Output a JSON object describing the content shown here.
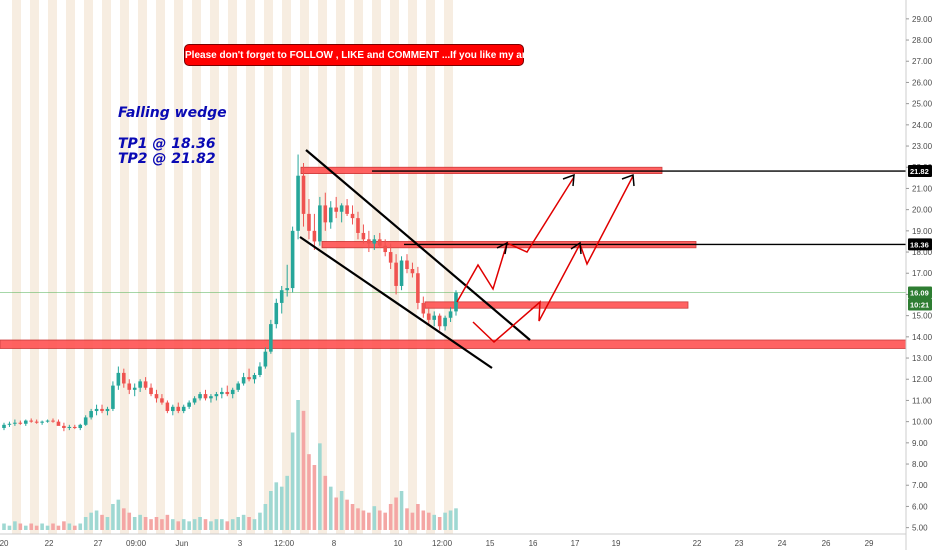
{
  "banner_text": "Please don't forget  to FOLLOW , LIKE and COMMENT ...If you like my analysis:)",
  "annotations": {
    "pattern": "Falling wedge",
    "tp1": "TP1 @ 18.36",
    "tp2": "TP2 @ 21.82"
  },
  "colors": {
    "zone": "#ff5252",
    "line": "#000000",
    "arrow": "#e00000",
    "up": "#26a69a",
    "down": "#ef5350",
    "band": "#f0dfc8",
    "price_tag": "#2e7d32"
  },
  "chart_data": {
    "type": "candlestick",
    "y_ticks": [
      "5.00",
      "6.00",
      "7.00",
      "8.00",
      "9.00",
      "10.00",
      "11.00",
      "12.00",
      "13.00",
      "14.00",
      "15.00",
      "16.00",
      "17.00",
      "18.00",
      "19.00",
      "20.00",
      "21.00",
      "22.00",
      "23.00",
      "24.00",
      "25.00",
      "26.00",
      "27.00",
      "28.00",
      "29.00"
    ],
    "x_ticks": [
      "20",
      "22",
      "27",
      "09:00",
      "Jun",
      "3",
      "12:00",
      "8",
      "10",
      "12:00",
      "15",
      "16",
      "17",
      "19",
      "22",
      "23",
      "24",
      "26",
      "29"
    ],
    "ylim": [
      4.7,
      29.7
    ],
    "price_labels": [
      {
        "text": "21.82",
        "value": 21.82,
        "kind": "line"
      },
      {
        "text": "18.36",
        "value": 18.36,
        "kind": "line"
      },
      {
        "text": "16.09",
        "value": 16.09,
        "kind": "current"
      },
      {
        "text": "10:21",
        "value": 15.42,
        "kind": "countdown"
      }
    ],
    "horizontal_lines": [
      21.82,
      18.36
    ],
    "current_price": 16.09,
    "zones": [
      {
        "name": "support-zone",
        "low": 13.45,
        "high": 13.85,
        "span": "full"
      },
      {
        "name": "entry-zone",
        "low": 15.35,
        "high": 15.65,
        "span": "partial"
      },
      {
        "name": "tp1-zone",
        "low": 18.2,
        "high": 18.5,
        "span": "partial"
      },
      {
        "name": "tp2-zone",
        "low": 21.7,
        "high": 22.0,
        "span": "partial"
      }
    ],
    "candles": [
      [
        9.7,
        9.95,
        9.6,
        9.85
      ],
      [
        9.85,
        10.0,
        9.75,
        9.9
      ],
      [
        9.9,
        10.1,
        9.8,
        9.95
      ],
      [
        9.95,
        10.05,
        9.85,
        9.9
      ],
      [
        9.9,
        10.1,
        9.8,
        10.05
      ],
      [
        10.05,
        10.15,
        9.95,
        10.0
      ],
      [
        10.0,
        10.1,
        9.9,
        9.95
      ],
      [
        9.95,
        10.05,
        9.85,
        10.0
      ],
      [
        10.0,
        10.1,
        9.95,
        10.05
      ],
      [
        10.05,
        10.15,
        9.95,
        10.0
      ],
      [
        10.0,
        10.1,
        9.9,
        9.8
      ],
      [
        9.8,
        9.95,
        9.55,
        9.7
      ],
      [
        9.7,
        9.85,
        9.6,
        9.75
      ],
      [
        9.75,
        9.85,
        9.65,
        9.7
      ],
      [
        9.7,
        9.9,
        9.6,
        9.85
      ],
      [
        9.85,
        10.3,
        9.8,
        10.2
      ],
      [
        10.2,
        10.6,
        10.1,
        10.5
      ],
      [
        10.5,
        10.8,
        10.3,
        10.6
      ],
      [
        10.6,
        10.8,
        10.4,
        10.5
      ],
      [
        10.5,
        10.7,
        10.3,
        10.6
      ],
      [
        10.6,
        11.9,
        10.5,
        11.7
      ],
      [
        11.7,
        12.6,
        11.5,
        12.3
      ],
      [
        12.3,
        12.5,
        11.6,
        11.8
      ],
      [
        11.8,
        12.0,
        11.3,
        11.5
      ],
      [
        11.5,
        11.8,
        11.2,
        11.6
      ],
      [
        11.6,
        12.0,
        11.4,
        11.9
      ],
      [
        11.9,
        12.1,
        11.5,
        11.6
      ],
      [
        11.6,
        11.8,
        11.2,
        11.3
      ],
      [
        11.3,
        11.5,
        10.9,
        11.1
      ],
      [
        11.1,
        11.3,
        10.8,
        10.9
      ],
      [
        10.9,
        11.0,
        10.4,
        10.5
      ],
      [
        10.5,
        10.8,
        10.3,
        10.7
      ],
      [
        10.7,
        10.9,
        10.4,
        10.5
      ],
      [
        10.5,
        10.8,
        10.4,
        10.7
      ],
      [
        10.7,
        11.0,
        10.6,
        10.9
      ],
      [
        10.9,
        11.2,
        10.8,
        11.1
      ],
      [
        11.1,
        11.4,
        11.0,
        11.3
      ],
      [
        11.3,
        11.5,
        11.0,
        11.1
      ],
      [
        11.1,
        11.3,
        10.9,
        11.2
      ],
      [
        11.2,
        11.4,
        11.0,
        11.3
      ],
      [
        11.3,
        11.6,
        11.1,
        11.4
      ],
      [
        11.4,
        11.7,
        11.2,
        11.3
      ],
      [
        11.3,
        11.6,
        11.1,
        11.5
      ],
      [
        11.5,
        11.9,
        11.4,
        11.8
      ],
      [
        11.8,
        12.3,
        11.7,
        12.1
      ],
      [
        12.1,
        12.5,
        11.9,
        12.0
      ],
      [
        12.0,
        12.3,
        11.8,
        12.2
      ],
      [
        12.2,
        12.8,
        12.1,
        12.6
      ],
      [
        12.6,
        13.5,
        12.5,
        13.3
      ],
      [
        13.3,
        14.8,
        13.2,
        14.6
      ],
      [
        14.6,
        15.8,
        14.4,
        15.6
      ],
      [
        15.6,
        16.4,
        15.1,
        16.2
      ],
      [
        16.2,
        17.4,
        15.9,
        16.3
      ],
      [
        16.3,
        19.2,
        16.1,
        19.0
      ],
      [
        19.0,
        22.6,
        18.6,
        21.6
      ],
      [
        21.6,
        22.2,
        19.2,
        19.8
      ],
      [
        19.8,
        20.5,
        18.6,
        19.0
      ],
      [
        19.0,
        19.8,
        18.1,
        18.5
      ],
      [
        18.5,
        20.6,
        18.3,
        20.2
      ],
      [
        20.2,
        20.8,
        19.0,
        19.4
      ],
      [
        19.4,
        20.4,
        19.1,
        20.1
      ],
      [
        20.1,
        20.6,
        19.6,
        19.9
      ],
      [
        19.9,
        20.3,
        19.4,
        20.2
      ],
      [
        20.2,
        20.5,
        19.7,
        19.8
      ],
      [
        19.8,
        20.2,
        19.3,
        19.6
      ],
      [
        19.6,
        19.9,
        18.6,
        18.9
      ],
      [
        18.9,
        19.3,
        18.4,
        18.6
      ],
      [
        18.6,
        19.0,
        18.0,
        18.4
      ],
      [
        18.4,
        18.8,
        18.1,
        18.6
      ],
      [
        18.6,
        18.9,
        18.2,
        18.3
      ],
      [
        18.3,
        18.6,
        17.8,
        18.0
      ],
      [
        18.0,
        18.4,
        17.2,
        17.5
      ],
      [
        17.5,
        17.9,
        16.0,
        16.4
      ],
      [
        16.4,
        17.8,
        16.2,
        17.6
      ],
      [
        17.6,
        17.9,
        17.0,
        17.2
      ],
      [
        17.2,
        17.5,
        16.8,
        17.0
      ],
      [
        17.0,
        17.3,
        15.3,
        15.6
      ],
      [
        15.6,
        15.9,
        14.9,
        15.1
      ],
      [
        15.1,
        15.4,
        14.6,
        14.8
      ],
      [
        14.8,
        15.2,
        14.5,
        15.0
      ],
      [
        15.0,
        15.1,
        14.3,
        14.5
      ],
      [
        14.5,
        15.0,
        14.3,
        14.9
      ],
      [
        14.9,
        15.4,
        14.7,
        15.2
      ],
      [
        15.2,
        16.2,
        15.0,
        16.09
      ]
    ],
    "volumes": [
      3,
      2,
      4,
      3,
      2,
      3,
      2,
      3,
      2,
      3,
      2,
      4,
      3,
      2,
      3,
      6,
      8,
      9,
      7,
      6,
      12,
      14,
      10,
      8,
      6,
      7,
      6,
      5,
      6,
      5,
      7,
      5,
      4,
      5,
      4,
      5,
      6,
      5,
      4,
      5,
      5,
      4,
      5,
      6,
      7,
      6,
      5,
      8,
      12,
      18,
      22,
      20,
      25,
      45,
      60,
      55,
      35,
      30,
      40,
      25,
      20,
      15,
      18,
      14,
      12,
      10,
      9,
      8,
      11,
      9,
      8,
      12,
      15,
      18,
      10,
      8,
      12,
      9,
      8,
      7,
      6,
      8,
      9,
      10
    ]
  }
}
